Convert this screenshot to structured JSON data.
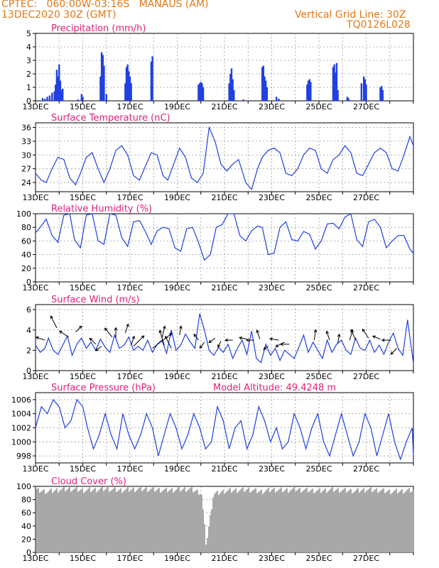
{
  "header": {
    "line1_left": "CPTEC:   060:00W-03:16S   MANAUS (AM)",
    "line2_left": "13DEC2020 30Z (GMT)",
    "line1_right": "Vertical Grid Line: 30Z",
    "line2_right": "TQ0126L028"
  },
  "colors": {
    "header": "#e07818",
    "title": "#e0207a",
    "line": "#2040e0",
    "cloud": "#a8a8a8",
    "grid": "#9a9a9a"
  },
  "x_ticks": [
    "13DEC",
    "15DEC",
    "17DEC",
    "19DEC",
    "21DEC",
    "23DEC",
    "25DEC",
    "27DEC"
  ],
  "chart_data": [
    {
      "id": "precip",
      "type": "bar",
      "title": "Precipitation (mm/h)",
      "ylim": [
        0,
        5
      ],
      "yticks": [
        0,
        1,
        2,
        3,
        4,
        5
      ],
      "x_range_days": [
        0,
        16
      ],
      "x": [
        0.3,
        0.4,
        0.5,
        0.6,
        0.7,
        0.8,
        0.85,
        0.9,
        0.95,
        1.0,
        1.05,
        1.1,
        1.15,
        1.8,
        1.95,
        2.0,
        2.75,
        2.8,
        2.85,
        2.9,
        3.0,
        3.8,
        3.85,
        3.9,
        3.95,
        4.0,
        4.05,
        4.9,
        4.95,
        6.9,
        6.95,
        7.0,
        7.05,
        7.1,
        8.2,
        8.25,
        8.3,
        8.35,
        8.4,
        8.8,
        9.6,
        9.65,
        9.7,
        9.75,
        9.8,
        10.2,
        10.3,
        11.5,
        11.55,
        11.6,
        11.65,
        12.6,
        12.65,
        12.7,
        12.75,
        12.8,
        13.2,
        13.25,
        13.8,
        13.9,
        13.95,
        14.0,
        14.6,
        14.65,
        14.7
      ],
      "y": [
        0.2,
        0.15,
        0.3,
        0.4,
        0.6,
        0.7,
        1.2,
        2.3,
        1.8,
        2.7,
        1.5,
        0.8,
        0.9,
        0.1,
        0.5,
        0.3,
        1.8,
        3.6,
        3.4,
        2.6,
        0.5,
        1.3,
        2.5,
        2.7,
        2.2,
        1.8,
        1.3,
        2.9,
        3.3,
        1.2,
        1.3,
        1.4,
        1.3,
        1.0,
        1.3,
        2.0,
        2.4,
        1.6,
        0.8,
        0.1,
        2.5,
        2.6,
        1.8,
        1.5,
        1.0,
        0.3,
        0.15,
        1.2,
        1.5,
        1.6,
        1.4,
        2.5,
        2.7,
        2.1,
        2.8,
        0.8,
        0.3,
        0.2,
        1.3,
        1.8,
        1.6,
        1.2,
        1.0,
        1.1,
        0.8
      ]
    },
    {
      "id": "temp",
      "type": "line",
      "title": "Surface Temperature (nC)",
      "ylim": [
        22,
        37
      ],
      "yticks": [
        24,
        27,
        30,
        33,
        36
      ],
      "x_range_days": [
        0,
        16
      ],
      "x": [
        0,
        0.25,
        0.45,
        0.7,
        0.95,
        1.2,
        1.45,
        1.7,
        1.9,
        2.15,
        2.4,
        2.65,
        2.9,
        3.15,
        3.4,
        3.65,
        3.9,
        4.15,
        4.4,
        4.65,
        4.9,
        5.15,
        5.4,
        5.6,
        5.85,
        6.1,
        6.35,
        6.6,
        6.85,
        7.1,
        7.35,
        7.6,
        7.85,
        8.1,
        8.35,
        8.6,
        8.9,
        9.15,
        9.4,
        9.6,
        9.85,
        10.1,
        10.35,
        10.6,
        10.85,
        11.1,
        11.35,
        11.6,
        11.85,
        12.1,
        12.35,
        12.6,
        12.85,
        13.1,
        13.35,
        13.6,
        13.85,
        14.1,
        14.35,
        14.6,
        14.85,
        15.1,
        15.35,
        15.6,
        15.85,
        16
      ],
      "y": [
        26,
        24.5,
        24,
        27,
        29.5,
        29,
        25,
        23.5,
        26,
        29.5,
        30.5,
        27,
        24,
        27,
        31,
        32,
        30,
        25.5,
        24.5,
        27.5,
        30.5,
        30,
        25.5,
        24.5,
        28,
        31.5,
        29.5,
        25,
        24,
        26,
        36,
        33,
        28,
        26.5,
        28,
        29,
        24,
        22.5,
        27,
        29.5,
        31,
        31.5,
        30.5,
        26,
        25.5,
        27,
        30,
        31.5,
        31,
        27,
        26,
        29,
        30,
        32,
        30.5,
        26,
        25.5,
        28,
        30.5,
        31.5,
        30.5,
        27,
        26.5,
        30,
        34,
        32
      ]
    },
    {
      "id": "rh",
      "type": "line",
      "title": "Relative Humidity (%)",
      "ylim": [
        0,
        100
      ],
      "yticks": [
        0,
        20,
        40,
        60,
        80,
        100
      ],
      "x_range_days": [
        0,
        16
      ],
      "x": [
        0,
        0.2,
        0.45,
        0.7,
        0.95,
        1.2,
        1.45,
        1.65,
        1.9,
        2.15,
        2.4,
        2.65,
        2.9,
        3.15,
        3.4,
        3.65,
        3.9,
        4.15,
        4.4,
        4.65,
        4.9,
        5.15,
        5.4,
        5.65,
        5.9,
        6.15,
        6.4,
        6.65,
        6.9,
        7.15,
        7.4,
        7.65,
        7.9,
        8.15,
        8.4,
        8.65,
        8.9,
        9.15,
        9.4,
        9.6,
        9.85,
        10.1,
        10.35,
        10.6,
        10.85,
        11.1,
        11.35,
        11.6,
        11.85,
        12.1,
        12.35,
        12.6,
        12.85,
        13.1,
        13.35,
        13.6,
        13.85,
        14.1,
        14.35,
        14.6,
        14.85,
        15.1,
        15.35,
        15.6,
        15.85,
        16
      ],
      "y": [
        72,
        80,
        92,
        68,
        58,
        98,
        100,
        62,
        50,
        98,
        100,
        60,
        55,
        100,
        98,
        65,
        52,
        88,
        90,
        74,
        55,
        75,
        80,
        78,
        50,
        45,
        78,
        80,
        58,
        32,
        40,
        80,
        84,
        100,
        100,
        68,
        60,
        75,
        82,
        80,
        40,
        42,
        80,
        88,
        62,
        60,
        74,
        70,
        48,
        60,
        85,
        86,
        78,
        95,
        100,
        62,
        52,
        88,
        92,
        80,
        50,
        60,
        68,
        68,
        48,
        42
      ]
    },
    {
      "id": "wind",
      "type": "line",
      "title": "Surface Wind (m/s)",
      "ylim": [
        0,
        6.5
      ],
      "yticks": [
        0,
        2,
        4,
        6
      ],
      "x_range_days": [
        0,
        16
      ],
      "x": [
        0,
        0.2,
        0.4,
        0.55,
        0.75,
        0.95,
        1.15,
        1.35,
        1.55,
        1.75,
        1.95,
        2.15,
        2.35,
        2.55,
        2.75,
        2.95,
        3.15,
        3.35,
        3.55,
        3.75,
        3.95,
        4.15,
        4.35,
        4.55,
        4.75,
        4.95,
        5.15,
        5.35,
        5.55,
        5.75,
        5.95,
        6.15,
        6.35,
        6.55,
        6.75,
        6.95,
        7.15,
        7.35,
        7.55,
        7.75,
        7.95,
        8.15,
        8.35,
        8.55,
        8.75,
        8.95,
        9.15,
        9.35,
        9.55,
        9.75,
        9.95,
        10.15,
        10.35,
        10.55,
        10.75,
        10.95,
        11.15,
        11.35,
        11.55,
        11.75,
        11.95,
        12.15,
        12.35,
        12.55,
        12.75,
        12.95,
        13.15,
        13.35,
        13.55,
        13.75,
        13.95,
        14.15,
        14.35,
        14.55,
        14.75,
        14.95,
        15.15,
        15.35,
        15.55,
        15.75,
        16
      ],
      "y": [
        2.5,
        1.8,
        2.2,
        3.2,
        2.0,
        1.6,
        2.5,
        3.4,
        1.5,
        2.6,
        3.2,
        2.2,
        2.8,
        2.0,
        3.1,
        2.3,
        1.8,
        3.5,
        2.2,
        2.5,
        3.3,
        2.0,
        2.4,
        2.0,
        3.0,
        1.8,
        2.6,
        3.0,
        1.7,
        4.0,
        2.0,
        2.5,
        3.6,
        2.8,
        2.2,
        5.6,
        4.0,
        2.0,
        1.5,
        2.3,
        1.8,
        2.6,
        1.2,
        2.2,
        3.0,
        1.6,
        3.9,
        1.2,
        0.8,
        2.6,
        1.5,
        2.2,
        1.0,
        2.0,
        1.6,
        1.2,
        2.3,
        3.5,
        1.8,
        2.8,
        2.0,
        1.2,
        3.0,
        1.8,
        2.6,
        3.0,
        2.0,
        1.6,
        3.2,
        2.2,
        2.0,
        3.0,
        1.8,
        2.5,
        1.6,
        2.8,
        3.7,
        2.2,
        1.5,
        5.0,
        0.7
      ],
      "arrows": [
        [
          0.4,
          3.0,
          -0.3,
          0.1
        ],
        [
          0.9,
          4.2,
          -0.2,
          0.4
        ],
        [
          1.4,
          3.3,
          -0.3,
          0.2
        ],
        [
          1.7,
          3.8,
          0.2,
          0.2
        ],
        [
          2.55,
          2.6,
          -0.2,
          0.2
        ],
        [
          2.8,
          2.4,
          -0.2,
          -0.15
        ],
        [
          3.25,
          3.3,
          -0.25,
          0.3
        ],
        [
          3.4,
          3.2,
          0.0,
          0.35
        ],
        [
          3.8,
          3.7,
          0.1,
          0.3
        ],
        [
          4.05,
          2.5,
          0.1,
          0.3
        ],
        [
          4.15,
          2.4,
          0.35,
          0.35
        ],
        [
          4.95,
          2.2,
          0.65,
          0.5
        ],
        [
          5.35,
          3.2,
          0.1,
          0.4
        ],
        [
          5.45,
          2.5,
          -0.15,
          0.5
        ],
        [
          5.75,
          2.2,
          -0.2,
          0.4
        ],
        [
          6.1,
          3.5,
          0.05,
          0.3
        ],
        [
          6.9,
          3.0,
          -0.15,
          0.2
        ],
        [
          7.15,
          2.8,
          -0.15,
          -0.2
        ],
        [
          7.6,
          3.2,
          -0.2,
          -0.15
        ],
        [
          7.85,
          2.9,
          -0.1,
          -0.2
        ],
        [
          8.35,
          3.0,
          -0.25,
          0.0
        ],
        [
          8.95,
          3.1,
          -0.25,
          0.05
        ],
        [
          9.25,
          3.0,
          -0.25,
          0.0
        ],
        [
          9.5,
          3.1,
          -0.1,
          0.3
        ],
        [
          9.85,
          2.4,
          -0.15,
          -0.1
        ],
        [
          10.3,
          3.0,
          -0.3,
          0.05
        ],
        [
          10.55,
          2.8,
          -0.3,
          -0.15
        ],
        [
          10.75,
          2.6,
          -0.3,
          0.0
        ],
        [
          11.8,
          3.0,
          0.05,
          0.35
        ],
        [
          12.45,
          3.0,
          -0.1,
          0.3
        ],
        [
          12.8,
          2.7,
          0.05,
          0.3
        ],
        [
          13.3,
          3.0,
          0.1,
          0.35
        ],
        [
          13.55,
          3.0,
          -0.15,
          0.35
        ],
        [
          14.1,
          3.2,
          -0.2,
          0.3
        ],
        [
          14.6,
          3.1,
          -0.25,
          0.1
        ],
        [
          15.05,
          3.0,
          -0.3,
          0.0
        ],
        [
          15.3,
          2.2,
          -0.2,
          -0.2
        ]
      ]
    },
    {
      "id": "pres",
      "type": "line",
      "title": "Surface Pressure (hPa)",
      "annotation": "Model Altitude: 49.4248 m",
      "ylim": [
        997,
        1007
      ],
      "yticks": [
        998,
        1000,
        1002,
        1004,
        1006
      ],
      "x_range_days": [
        0,
        16
      ],
      "x": [
        0,
        0.25,
        0.5,
        0.75,
        1.0,
        1.25,
        1.5,
        1.75,
        2.0,
        2.2,
        2.45,
        2.7,
        2.95,
        3.2,
        3.45,
        3.7,
        3.95,
        4.2,
        4.45,
        4.7,
        4.95,
        5.2,
        5.45,
        5.7,
        5.95,
        6.2,
        6.45,
        6.7,
        6.95,
        7.2,
        7.45,
        7.7,
        7.95,
        8.2,
        8.45,
        8.7,
        8.95,
        9.2,
        9.45,
        9.7,
        9.95,
        10.2,
        10.45,
        10.7,
        10.95,
        11.2,
        11.45,
        11.7,
        11.95,
        12.2,
        12.45,
        12.7,
        12.95,
        13.2,
        13.45,
        13.7,
        13.95,
        14.2,
        14.45,
        14.7,
        14.95,
        15.2,
        15.45,
        15.7,
        15.95,
        16
      ],
      "y": [
        1002,
        1005,
        1004,
        1006,
        1005,
        1002,
        1003,
        1006,
        1005,
        1002,
        999,
        1001,
        1004,
        1001,
        999,
        1004,
        1001,
        999,
        1001,
        1004,
        1002,
        998,
        1001,
        1004,
        1002,
        999,
        1001,
        1004,
        1002,
        999,
        1000,
        1005,
        1003,
        999,
        1002,
        1003,
        999,
        1001,
        1005,
        1003,
        1000,
        1002,
        999,
        1000,
        1004,
        1002,
        999,
        1002,
        1004,
        1000,
        998,
        1001,
        1004,
        1001,
        998,
        1000,
        1004,
        1002,
        998,
        1001,
        1004,
        1000,
        997.5,
        1000,
        1002,
        998
      ]
    },
    {
      "id": "cloud",
      "type": "area",
      "title": "Cloud Cover (%)",
      "ylim": [
        0,
        100
      ],
      "yticks": [
        0,
        20,
        40,
        60,
        80,
        100
      ],
      "x_range_days": [
        0,
        16
      ],
      "x": [
        0,
        0.5,
        1.0,
        1.5,
        2.0,
        2.5,
        3.0,
        3.5,
        4.0,
        4.5,
        5.0,
        5.5,
        6.0,
        6.5,
        7.0,
        7.2,
        7.5,
        8.0,
        8.5,
        9.0,
        9.5,
        10.0,
        10.5,
        11.0,
        11.5,
        12.0,
        12.5,
        13.0,
        13.5,
        14.0,
        14.5,
        15.0,
        15.5,
        16.0
      ],
      "y": [
        94,
        92,
        95,
        96,
        94,
        95,
        96,
        94,
        95,
        96,
        95,
        94,
        95,
        96,
        90,
        10,
        88,
        93,
        94,
        95,
        92,
        95,
        94,
        95,
        94,
        93,
        95,
        94,
        93,
        95,
        94,
        92,
        93,
        94
      ]
    }
  ]
}
